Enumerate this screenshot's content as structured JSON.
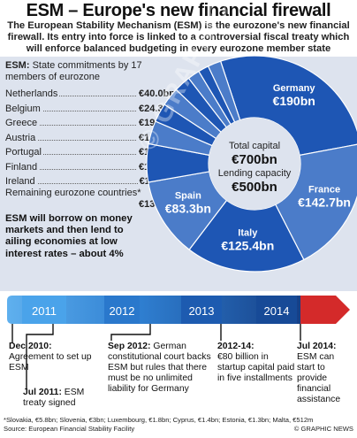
{
  "title": "ESM – Europe's new financial firewall",
  "subtitle": "The European Stability Mechanism (ESM) is the eurozone's new financial firewall. Its entry into force is linked to a controversial fiscal treaty which will enforce balanced budgeting in every eurozone member state",
  "esm_label": "ESM:",
  "esm_desc": "State commitments by 17 members of eurozone",
  "remaining_label": "Remaining eurozone countries*",
  "borrow_text": "ESM will borrow on money markets and then lend to ailing economies at low interest rates – about 4%",
  "pie_center": {
    "total_label": "Total capital",
    "total_value": "€700bn",
    "lending_label": "Lending capacity",
    "lending_value": "€500bn"
  },
  "chart_data": {
    "type": "pie",
    "unit": "€bn",
    "slices": [
      {
        "name": "Germany",
        "value": 190,
        "label": "€190bn",
        "color": "#1e56b4"
      },
      {
        "name": "France",
        "value": 142.7,
        "label": "€142.7bn",
        "color": "#4b7cc9"
      },
      {
        "name": "Italy",
        "value": 125.4,
        "label": "€125.4bn",
        "color": "#1e56b4"
      },
      {
        "name": "Spain",
        "value": 83.3,
        "label": "€83.3bn",
        "color": "#4b7cc9"
      },
      {
        "name": "Netherlands",
        "value": 40.0,
        "label": "€40.0bn",
        "color": "#1e56b4"
      },
      {
        "name": "Belgium",
        "value": 24.3,
        "label": "€24.3bn",
        "color": "#4b7cc9"
      },
      {
        "name": "Greece",
        "value": 19.7,
        "label": "€19.7bn",
        "color": "#1e56b4"
      },
      {
        "name": "Austria",
        "value": 19.5,
        "label": "€19.5bn",
        "color": "#4b7cc9"
      },
      {
        "name": "Portugal",
        "value": 17.6,
        "label": "€17.6bn",
        "color": "#1e56b4"
      },
      {
        "name": "Finland",
        "value": 12.6,
        "label": "€12.6bn",
        "color": "#4b7cc9"
      },
      {
        "name": "Ireland",
        "value": 11.1,
        "label": "€11.1bn",
        "color": "#1e56b4"
      },
      {
        "name": "Remaining eurozone countries*",
        "value": 13.8,
        "label": "€13.8bn",
        "color": "#4b7cc9"
      }
    ],
    "legend_countries": [
      {
        "name": "Netherlands",
        "label": "€40.0bn"
      },
      {
        "name": "Belgium",
        "label": "€24.3bn"
      },
      {
        "name": "Greece",
        "label": "€19.7bn"
      },
      {
        "name": "Austria",
        "label": "€19.5bn"
      },
      {
        "name": "Portugal",
        "label": "€17.6bn"
      },
      {
        "name": "Finland",
        "label": "€12.6bn"
      },
      {
        "name": "Ireland",
        "label": "€11.1bn"
      }
    ],
    "remaining_value_label": "€13.8bn"
  },
  "timeline": {
    "years": [
      "2011",
      "2012",
      "2013",
      "2014"
    ],
    "events": [
      {
        "date": "Dec 2010:",
        "text": "Agreement to set up ESM"
      },
      {
        "date": "Jul 2011:",
        "text": "ESM treaty signed"
      },
      {
        "date": "Sep 2012:",
        "text": "German constitutional court backs ESM but rules that there must be no unlimited liability for Germany"
      },
      {
        "date": "2012-14:",
        "text": "€80 billion in startup capital paid in five installments"
      },
      {
        "date": "Jul 2014:",
        "text": "ESM can start to provide financial assistance"
      }
    ]
  },
  "footnote": "*Slovakia, €5.8bn; Slovenia, €3bn; Luxembourg, €1.8bn; Cyprus, €1.4bn; Estonia, €1.3bn; Malta, €512m",
  "source": "Source: European Financial Stability Facility",
  "copyright": "© GRAPHIC NEWS",
  "watermark": "© GRAPHIC NEWS",
  "colors": {
    "dark_blue": "#1e56b4",
    "light_blue": "#4b7cc9",
    "panel": "#dde3ee",
    "red": "#d42a2a",
    "timeline_blue": "#2f7fd1"
  }
}
